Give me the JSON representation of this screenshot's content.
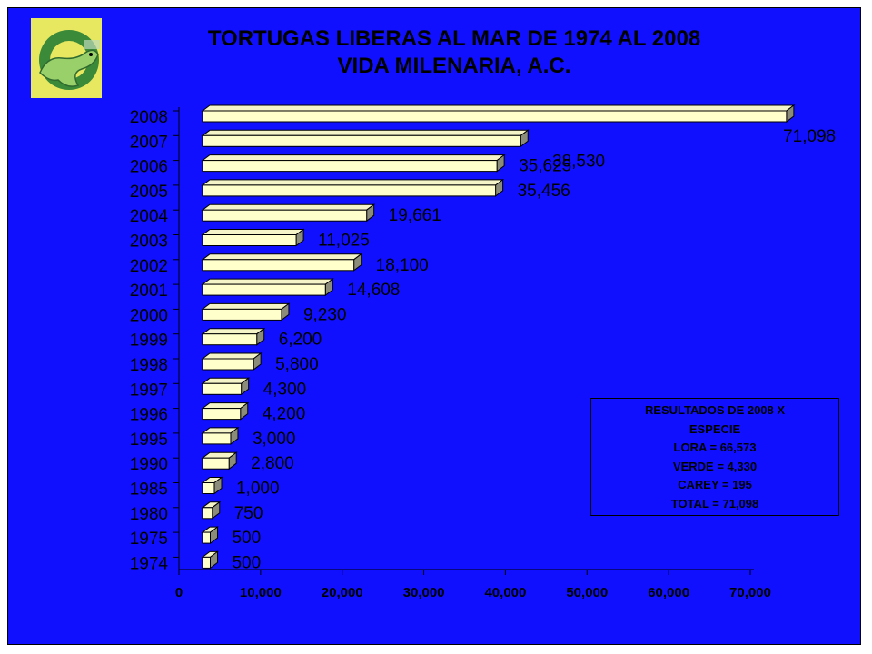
{
  "chart_data": {
    "type": "bar",
    "orientation": "horizontal",
    "title": "TORTUGAS LIBERAS AL MAR DE 1974 AL 2008",
    "subtitle": "VIDA MILENARIA, A.C.",
    "categories": [
      "2008",
      "2007",
      "2006",
      "2005",
      "2004",
      "2003",
      "2002",
      "2001",
      "2000",
      "1999",
      "1998",
      "1997",
      "1996",
      "1995",
      "1990",
      "1985",
      "1980",
      "1975",
      "1974"
    ],
    "values": [
      71098,
      38530,
      35625,
      35456,
      19661,
      11025,
      18100,
      14608,
      9230,
      6200,
      5800,
      4300,
      4200,
      3000,
      2800,
      1000,
      750,
      500,
      500
    ],
    "value_labels": [
      "71,098",
      "38,530",
      "35,625",
      "35,456",
      "19,661",
      "11,025",
      "18,100",
      "14,608",
      "9,230",
      "6,200",
      "5,800",
      "4,300",
      "4,200",
      "3,000",
      "2,800",
      "1,000",
      "750",
      "500",
      "500"
    ],
    "xlim": [
      0,
      70000
    ],
    "xticks": [
      0,
      10000,
      20000,
      30000,
      40000,
      50000,
      60000,
      70000
    ],
    "xtick_labels": [
      "0",
      "10,000",
      "20,000",
      "30,000",
      "40,000",
      "50,000",
      "60,000",
      "70,000"
    ],
    "grid": false,
    "colors": {
      "background": "#1010ff",
      "bar_face": "#ffffcc",
      "bar_side": "#8c8c7a",
      "text": "#000000"
    }
  },
  "legend_box": {
    "lines": [
      "RESULTADOS DE 2008 X",
      "ESPECIE",
      "LORA = 66,573",
      "VERDE = 4,330",
      "CAREY = 195",
      "TOTAL = 71,098"
    ]
  },
  "logo": {
    "icon": "turtle-logo-icon"
  }
}
